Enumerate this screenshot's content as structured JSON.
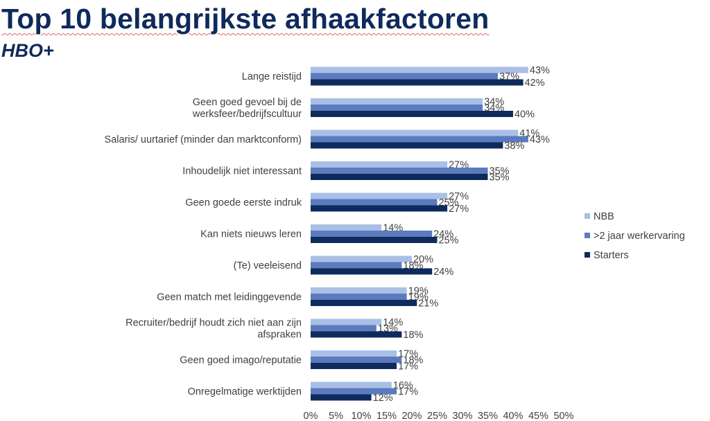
{
  "header": {
    "title": "Top 10 belangrijkste afhaakfactoren",
    "subtitle": "HBO+"
  },
  "chart_data": {
    "type": "bar",
    "orientation": "horizontal",
    "categories": [
      "Lange reistijd",
      "Geen goed gevoel bij de werksfeer/bedrijfscultuur",
      "Salaris/ uurtarief (minder dan marktconform)",
      "Inhoudelijk niet interessant",
      "Geen goede eerste indruk",
      "Kan niets nieuws leren",
      "(Te) veeleisend",
      "Geen match met leidinggevende",
      "Recruiter/bedrijf houdt zich niet aan zijn afspraken",
      "Geen goed imago/reputatie",
      "Onregelmatige werktijden"
    ],
    "category_lines": [
      [
        "Lange reistijd"
      ],
      [
        "Geen goed gevoel bij de",
        "werksfeer/bedrijfscultuur"
      ],
      [
        "Salaris/ uurtarief (minder dan marktconform)"
      ],
      [
        "Inhoudelijk niet interessant"
      ],
      [
        "Geen goede eerste indruk"
      ],
      [
        "Kan niets nieuws leren"
      ],
      [
        "(Te) veeleisend"
      ],
      [
        "Geen match met leidinggevende"
      ],
      [
        "Recruiter/bedrijf houdt zich niet aan zijn",
        "afspraken"
      ],
      [
        "Geen goed imago/reputatie"
      ],
      [
        "Onregelmatige werktijden"
      ]
    ],
    "series": [
      {
        "name": "NBB",
        "color": "#a9bfe6",
        "values": [
          43,
          34,
          41,
          27,
          27,
          14,
          20,
          19,
          14,
          17,
          16
        ]
      },
      {
        "name": ">2 jaar werkervaring",
        "color": "#5b7bbd",
        "values": [
          37,
          34,
          43,
          35,
          25,
          24,
          18,
          19,
          13,
          18,
          17
        ]
      },
      {
        "name": "Starters",
        "color": "#0f2a5c",
        "values": [
          42,
          40,
          38,
          35,
          27,
          25,
          24,
          21,
          18,
          17,
          12
        ]
      }
    ],
    "value_suffix": "%",
    "xlim": [
      0,
      50
    ],
    "xticks": [
      "0%",
      "5%",
      "10%",
      "15%",
      "20%",
      "25%",
      "30%",
      "35%",
      "40%",
      "45%",
      "50%"
    ],
    "grid": false,
    "legend_position": "right"
  }
}
